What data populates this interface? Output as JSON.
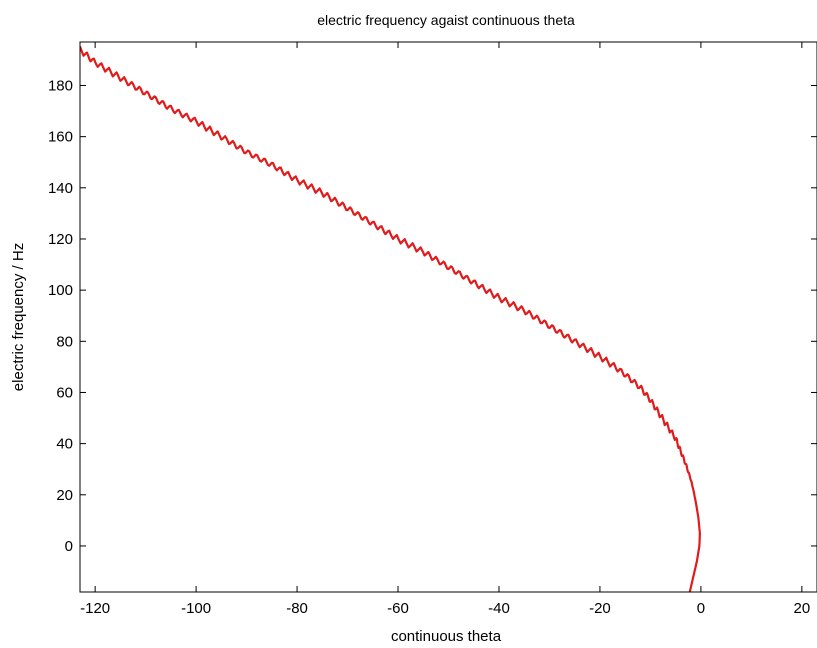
{
  "chart_data": {
    "type": "line",
    "title": "electric frequency agaist continuous  theta",
    "xlabel": "continuous theta",
    "ylabel": "electric frequency / Hz",
    "xlim": [
      -123,
      23
    ],
    "ylim": [
      -18,
      197
    ],
    "xticks": [
      -120,
      -100,
      -80,
      -60,
      -40,
      -20,
      0,
      20
    ],
    "yticks": [
      0,
      20,
      40,
      60,
      80,
      100,
      120,
      140,
      160,
      180
    ],
    "grid": false,
    "legend": "none",
    "series": [
      {
        "color": "#e01b1b",
        "x": [
          -123,
          -120,
          -115,
          -110,
          -105,
          -100,
          -95,
          -90,
          -85,
          -80,
          -75,
          -70,
          -65,
          -60,
          -55,
          -50,
          -45,
          -40,
          -35,
          -30,
          -25,
          -20,
          -17,
          -15,
          -12,
          -10,
          -8,
          -6,
          -5,
          -4,
          -3,
          -2,
          -1.5,
          -1,
          -0.5,
          -0.2,
          -0.3,
          -0.8,
          -1.5,
          -2.2
        ],
        "y": [
          194,
          189,
          183,
          177,
          171,
          166,
          160,
          154,
          149,
          143,
          138,
          132,
          126,
          120,
          115,
          109,
          103,
          97,
          92,
          86,
          80,
          74,
          70,
          67,
          62,
          57,
          51,
          45,
          42,
          37,
          32,
          26,
          22,
          17,
          11,
          5,
          0,
          -6,
          -12,
          -18
        ]
      }
    ]
  }
}
